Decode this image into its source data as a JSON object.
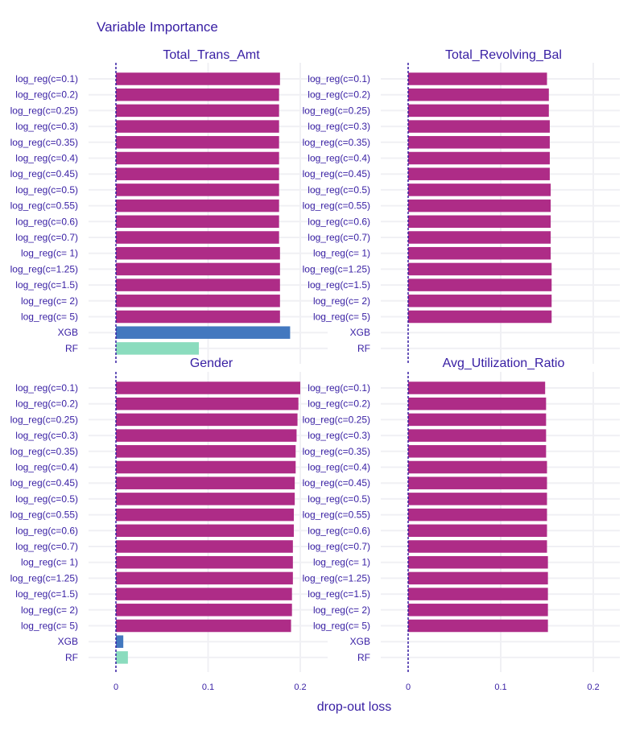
{
  "chart_data": {
    "type": "bar",
    "orientation": "horizontal",
    "title": "Variable Importance",
    "xlabel": "drop-out loss",
    "xlim": [
      0,
      0.225
    ],
    "xticks": [
      0,
      0.1,
      0.2
    ],
    "xtick_labels": [
      "0",
      "0.1",
      "0.2"
    ],
    "baseline_style": "dashed",
    "grid": true,
    "legend": "none",
    "colors": {
      "log_reg": "#ae2c87",
      "XGB": "#4378bf",
      "RF": "#8bdcbe",
      "text": "#371ea3",
      "grid": "#f0f0f4"
    },
    "categories": [
      "log_reg(c=0.1)",
      "log_reg(c=0.2)",
      "log_reg(c=0.25)",
      "log_reg(c=0.3)",
      "log_reg(c=0.35)",
      "log_reg(c=0.4)",
      "log_reg(c=0.45)",
      "log_reg(c=0.5)",
      "log_reg(c=0.55)",
      "log_reg(c=0.6)",
      "log_reg(c=0.7)",
      "log_reg(c=  1)",
      "log_reg(c=1.25)",
      "log_reg(c=1.5)",
      "log_reg(c=  2)",
      "log_reg(c=  5)",
      "XGB",
      "RF"
    ],
    "panels": [
      {
        "variable": "Total_Trans_Amt",
        "values": [
          0.178,
          0.177,
          0.177,
          0.177,
          0.177,
          0.177,
          0.177,
          0.177,
          0.177,
          0.177,
          0.177,
          0.178,
          0.178,
          0.178,
          0.178,
          0.178,
          0.189,
          0.09
        ]
      },
      {
        "variable": "Total_Revolving_Bal",
        "values": [
          0.15,
          0.152,
          0.152,
          0.153,
          0.153,
          0.153,
          0.153,
          0.154,
          0.154,
          0.154,
          0.154,
          0.154,
          0.155,
          0.155,
          0.155,
          0.155,
          0.0,
          0.0
        ]
      },
      {
        "variable": "Gender",
        "values": [
          0.2,
          0.198,
          0.197,
          0.196,
          0.195,
          0.195,
          0.194,
          0.194,
          0.193,
          0.193,
          0.192,
          0.192,
          0.192,
          0.191,
          0.191,
          0.19,
          0.008,
          0.013
        ]
      },
      {
        "variable": "Avg_Utilization_Ratio",
        "values": [
          0.148,
          0.149,
          0.149,
          0.149,
          0.149,
          0.15,
          0.15,
          0.15,
          0.15,
          0.15,
          0.15,
          0.151,
          0.151,
          0.151,
          0.151,
          0.151,
          0.0,
          0.0
        ]
      }
    ]
  }
}
